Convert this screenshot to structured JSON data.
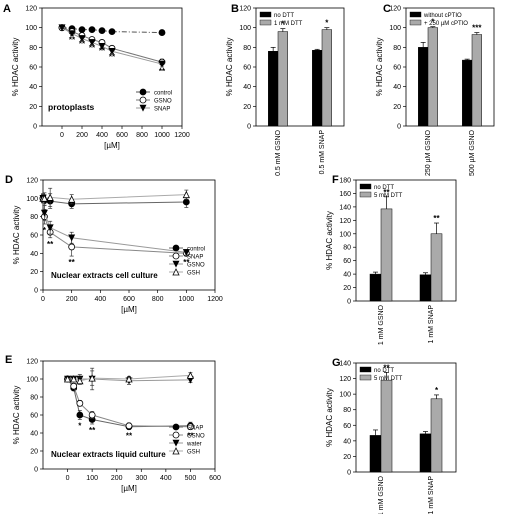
{
  "chart_data": [
    {
      "panel": "A",
      "type": "line",
      "ylabel": "% HDAC activity",
      "xlabel": "[µM]",
      "xlim": [
        -200,
        1200
      ],
      "ylim": [
        0,
        120
      ],
      "xticks": [
        "0",
        "200",
        "400",
        "600",
        "800",
        "1000",
        "1200"
      ],
      "yticks": [
        "0",
        "20",
        "40",
        "60",
        "80",
        "100",
        "120"
      ],
      "legend_position": "right",
      "inset_label": "protoplasts",
      "series": [
        {
          "name": "control",
          "marker": "circle-filled",
          "line": "dash-dot",
          "color": "#555555",
          "x": [
            0,
            100,
            200,
            300,
            400,
            500,
            1000
          ],
          "y": [
            100,
            99,
            98,
            98,
            97,
            96,
            95
          ]
        },
        {
          "name": "GSNO",
          "marker": "circle-open",
          "line": "solid",
          "color": "#777777",
          "x": [
            0,
            100,
            200,
            300,
            400,
            500,
            1000
          ],
          "y": [
            100,
            96,
            92,
            88,
            85,
            79,
            65
          ],
          "err": [
            1,
            2,
            2,
            2,
            2,
            2,
            3
          ],
          "stars": [
            "",
            "**",
            "**",
            "**",
            "**",
            "**",
            "**"
          ]
        },
        {
          "name": "SNAP",
          "marker": "triangle-down",
          "line": "solid",
          "color": "#999999",
          "x": [
            0,
            100,
            200,
            300,
            400,
            500,
            1000
          ],
          "y": [
            100,
            94,
            89,
            85,
            81,
            76,
            63
          ],
          "err": [
            1,
            2,
            2,
            2,
            2,
            2,
            3
          ]
        }
      ]
    },
    {
      "panel": "B",
      "type": "bar",
      "ylabel": "% HDAC activity",
      "ylim": [
        0,
        120
      ],
      "yticks": [
        "0",
        "20",
        "40",
        "60",
        "80",
        "100",
        "120"
      ],
      "categories": [
        "0.5 mM GSNO",
        "0.5 mM SNAP"
      ],
      "series": [
        {
          "name": "no DTT",
          "color": "#000000",
          "values": [
            76,
            77
          ],
          "err": [
            4,
            1
          ]
        },
        {
          "name": "1 mM DTT",
          "color": "#aaaaaa",
          "values": [
            96,
            98
          ],
          "err": [
            3,
            2
          ],
          "stars": [
            "*",
            "*"
          ]
        }
      ]
    },
    {
      "panel": "C",
      "type": "bar",
      "ylabel": "% HDAC activity",
      "ylim": [
        0,
        120
      ],
      "yticks": [
        "0",
        "20",
        "40",
        "60",
        "80",
        "100",
        "120"
      ],
      "categories": [
        "250 µM GSNO",
        "500 µM GSNO"
      ],
      "series": [
        {
          "name": "without cPTIO",
          "color": "#000000",
          "values": [
            80,
            67
          ],
          "err": [
            5,
            1
          ]
        },
        {
          "name": "+ 250 µM cPTIO",
          "color": "#aaaaaa",
          "values": [
            100,
            93
          ],
          "err": [
            1,
            2
          ],
          "stars": [
            "*",
            "***"
          ]
        }
      ]
    },
    {
      "panel": "D",
      "type": "line",
      "ylabel": "% HDAC activity",
      "xlabel": "[µM]",
      "xlim": [
        0,
        1200
      ],
      "ylim": [
        0,
        120
      ],
      "xticks": [
        "0",
        "200",
        "400",
        "600",
        "800",
        "1000",
        "1200"
      ],
      "yticks": [
        "0",
        "20",
        "40",
        "60",
        "80",
        "100",
        "120"
      ],
      "legend_position": "right",
      "inset_label": "Nuclear extracts cell culture",
      "series": [
        {
          "name": "control",
          "marker": "circle-filled",
          "line": "solid",
          "color": "#666666",
          "x": [
            0,
            10,
            50,
            200,
            1000
          ],
          "y": [
            100,
            98,
            97,
            94,
            96
          ],
          "err": [
            5,
            6,
            8,
            5,
            6
          ]
        },
        {
          "name": "SNAP",
          "marker": "circle-open",
          "line": "solid",
          "color": "#888888",
          "x": [
            0,
            10,
            50,
            200,
            1000
          ],
          "y": [
            100,
            80,
            63,
            47,
            40
          ],
          "err": [
            4,
            8,
            6,
            10,
            3
          ],
          "stars": [
            "",
            "*",
            "**",
            "**",
            "**"
          ]
        },
        {
          "name": "GSNO",
          "marker": "triangle-down",
          "line": "solid",
          "color": "#999999",
          "x": [
            0,
            10,
            50,
            200,
            1000
          ],
          "y": [
            100,
            84,
            68,
            57,
            41
          ],
          "err": [
            4,
            8,
            7,
            6,
            3
          ]
        },
        {
          "name": "GSH",
          "marker": "triangle-up-open",
          "line": "solid",
          "color": "#aaaaaa",
          "x": [
            0,
            10,
            50,
            200,
            1000
          ],
          "y": [
            100,
            100,
            101,
            99,
            104
          ],
          "err": [
            4,
            6,
            10,
            5,
            5
          ]
        }
      ]
    },
    {
      "panel": "E",
      "type": "line",
      "ylabel": "% HDAC activity",
      "xlabel": "[µM]",
      "xlim": [
        -100,
        600
      ],
      "ylim": [
        0,
        120
      ],
      "xticks": [
        "0",
        "100",
        "200",
        "300",
        "400",
        "500",
        "600"
      ],
      "yticks": [
        "0",
        "20",
        "40",
        "60",
        "80",
        "100",
        "120"
      ],
      "legend_position": "right",
      "inset_label": "Nuclear extracts liquid culture",
      "series": [
        {
          "name": "SNAP",
          "marker": "circle-filled",
          "line": "solid",
          "color": "#666666",
          "x": [
            0,
            25,
            50,
            100,
            250,
            500
          ],
          "y": [
            100,
            90,
            60,
            55,
            47,
            48
          ],
          "err": [
            2,
            3,
            5,
            5,
            3,
            4
          ],
          "stars": [
            "",
            "",
            "*",
            "**",
            "**",
            "**"
          ]
        },
        {
          "name": "GSNO",
          "marker": "circle-open",
          "line": "solid",
          "color": "#888888",
          "x": [
            0,
            25,
            50,
            100,
            250,
            500
          ],
          "y": [
            100,
            92,
            73,
            60,
            48,
            47
          ],
          "err": [
            2,
            3,
            3,
            4,
            3,
            3
          ]
        },
        {
          "name": "water",
          "marker": "triangle-down",
          "line": "solid",
          "color": "#999999",
          "x": [
            0,
            25,
            50,
            100,
            250,
            500
          ],
          "y": [
            100,
            100,
            100,
            100,
            98,
            99
          ],
          "err": [
            2,
            3,
            5,
            12,
            4,
            3
          ]
        },
        {
          "name": "GSH",
          "marker": "triangle-up-open",
          "line": "solid",
          "color": "#aaaaaa",
          "x": [
            0,
            25,
            50,
            100,
            250,
            500
          ],
          "y": [
            100,
            100,
            98,
            101,
            100,
            104
          ],
          "err": [
            2,
            3,
            4,
            8,
            3,
            3
          ]
        }
      ]
    },
    {
      "panel": "F",
      "type": "bar",
      "ylabel": "% HDAC activity",
      "ylim": [
        0,
        180
      ],
      "yticks": [
        "0",
        "20",
        "40",
        "60",
        "80",
        "100",
        "120",
        "140",
        "160",
        "180"
      ],
      "categories": [
        "1 mM GSNO",
        "1 mM SNAP"
      ],
      "series": [
        {
          "name": "no DTT",
          "color": "#000000",
          "values": [
            40,
            39
          ],
          "err": [
            3,
            3
          ]
        },
        {
          "name": "5 mM DTT",
          "color": "#aaaaaa",
          "values": [
            137,
            100
          ],
          "err": [
            18,
            16
          ],
          "stars": [
            "**",
            "**"
          ]
        }
      ]
    },
    {
      "panel": "G",
      "type": "bar",
      "ylabel": "% HDAC activity",
      "ylim": [
        0,
        140
      ],
      "yticks": [
        "0",
        "20",
        "40",
        "60",
        "80",
        "100",
        "120",
        "140"
      ],
      "categories": [
        "1 mM GSNO",
        "1 mM SNAP"
      ],
      "series": [
        {
          "name": "no DTT",
          "color": "#000000",
          "values": [
            47,
            49
          ],
          "err": [
            7,
            3
          ]
        },
        {
          "name": "5 mM DTT",
          "color": "#aaaaaa",
          "values": [
            118,
            94
          ],
          "err": [
            10,
            5
          ],
          "stars": [
            "**",
            "*"
          ]
        }
      ]
    }
  ]
}
